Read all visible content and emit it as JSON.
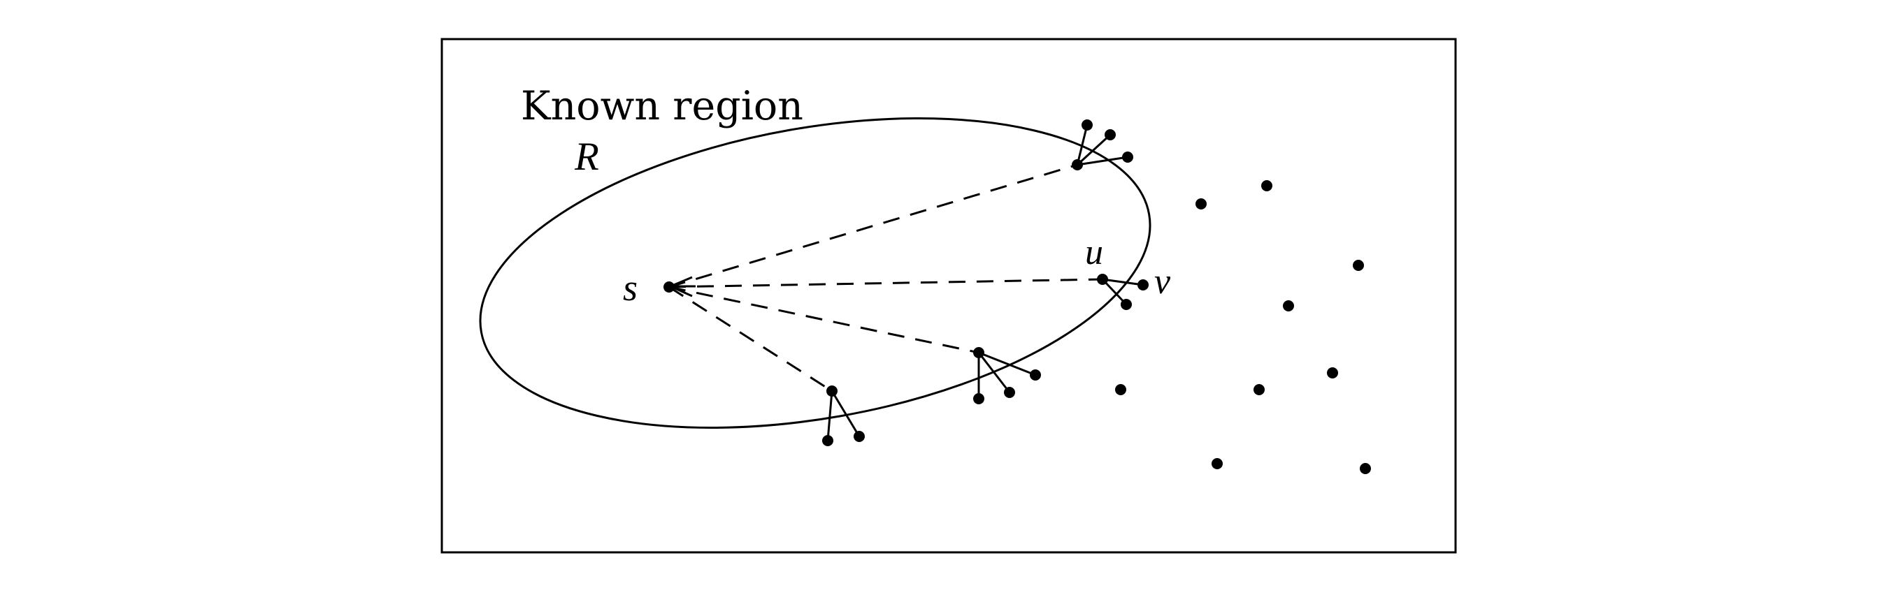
{
  "diagram": {
    "region_title": "Known region",
    "region_symbol": "R",
    "source_label": "s",
    "node_u_label": "u",
    "node_v_label": "v"
  }
}
